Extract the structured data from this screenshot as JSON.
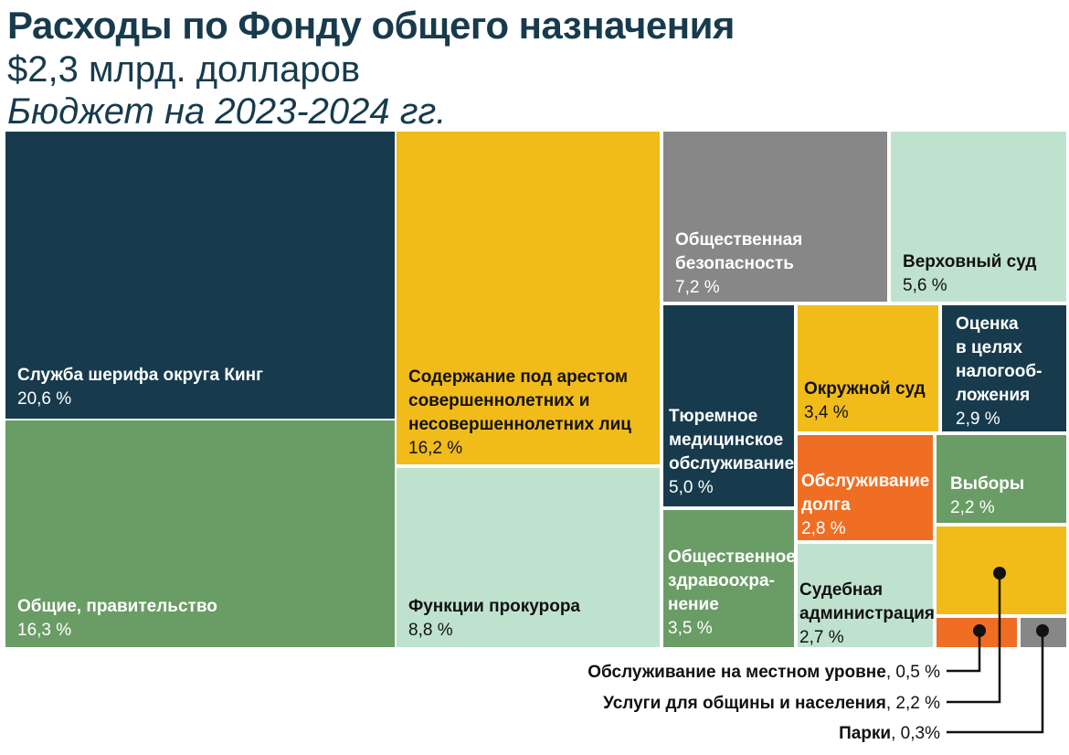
{
  "header": {
    "title": "Расходы по Фонду общего назначения",
    "subtitle": "$2,3 млрд. долларов",
    "subtitle2": "Бюджет на 2023-2024 гг."
  },
  "colors": {
    "navy": "#173b4d",
    "green": "#6a9c65",
    "yellow": "#f1bb19",
    "mint": "#bfe2cf",
    "gray": "#878787",
    "orange": "#ef6e24"
  },
  "chart_data": {
    "type": "treemap",
    "title": "Расходы по Фонду общего назначения",
    "units": "%",
    "items": [
      {
        "label": "Служба шерифа округа Кинг",
        "value": 20.6,
        "value_text": "20,6 %",
        "color": "#173b4d"
      },
      {
        "label": "Общие, правительство",
        "value": 16.3,
        "value_text": "16,3 %",
        "color": "#6a9c65"
      },
      {
        "label": "Содержание под арестом совершеннолетних и несовершеннолетних лиц",
        "value": 16.2,
        "value_text": "16,2 %",
        "color": "#f1bb19"
      },
      {
        "label": "Функции прокурора",
        "value": 8.8,
        "value_text": "8,8 %",
        "color": "#bfe2cf"
      },
      {
        "label": "Общественная безопасность",
        "value": 7.2,
        "value_text": "7,2 %",
        "color": "#878787"
      },
      {
        "label": "Верховный суд",
        "value": 5.6,
        "value_text": "5,6 %",
        "color": "#bfe2cf"
      },
      {
        "label": "Тюремное медицинское обслуживание",
        "value": 5.0,
        "value_text": "5,0 %",
        "color": "#173b4d"
      },
      {
        "label": "Окружной суд",
        "value": 3.4,
        "value_text": "3,4 %",
        "color": "#f1bb19"
      },
      {
        "label": "Оценка в целях налогообложения",
        "value": 2.9,
        "value_text": "2,9 %",
        "color": "#173b4d"
      },
      {
        "label": "Общественное здравоохранение",
        "value": 3.5,
        "value_text": "3,5 %",
        "color": "#6a9c65"
      },
      {
        "label": "Обслуживание долга",
        "value": 2.8,
        "value_text": "2,8 %",
        "color": "#ef6e24"
      },
      {
        "label": "Выборы",
        "value": 2.2,
        "value_text": "2,2 %",
        "color": "#6a9c65"
      },
      {
        "label": "Судебная администрация",
        "value": 2.7,
        "value_text": "2,7 %",
        "color": "#bfe2cf"
      },
      {
        "label": "Услуги для общины и населения",
        "value": 2.2,
        "value_text": "2,2 %",
        "color": "#f1bb19"
      },
      {
        "label": "Обслуживание на местном уровне",
        "value": 0.5,
        "value_text": "0,5 %",
        "color": "#ef6e24"
      },
      {
        "label": "Парки",
        "value": 0.3,
        "value_text": "0,3%",
        "color": "#878787"
      }
    ]
  }
}
